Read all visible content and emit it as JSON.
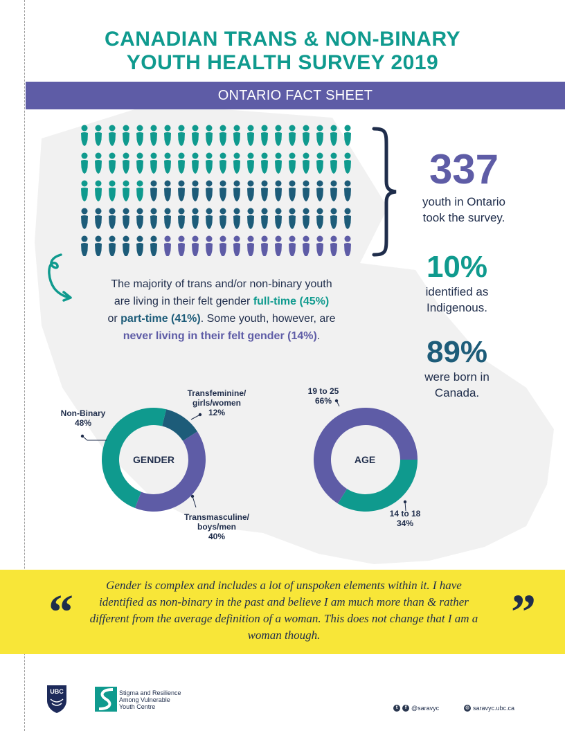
{
  "header": {
    "title_line1": "CANADIAN TRANS & NON-BINARY",
    "title_line2": "YOUTH HEALTH SURVEY 2019",
    "banner": "ONTARIO FACT SHEET"
  },
  "colors": {
    "teal": "#0f9a8e",
    "navy": "#1d5c79",
    "purple": "#5e5ca6",
    "yellow": "#f8e638",
    "map_gray": "#f0f0f0"
  },
  "pictogram": {
    "icon": "person-icon",
    "total_icons": 100,
    "teal_icons": 45,
    "navy_icons": 41,
    "purple_icons": 14
  },
  "stats": [
    {
      "value": "337",
      "text_line1": "youth in Ontario",
      "text_line2": "took the survey."
    },
    {
      "value": "10%",
      "text_line1": "identified as",
      "text_line2": "Indigenous."
    },
    {
      "value": "89%",
      "text_line1": "were born in",
      "text_line2": "Canada."
    }
  ],
  "felt_gender": {
    "line1": "The majority of trans and/or non-binary youth",
    "line2a": "are living in their felt gender ",
    "fulltime": "full-time (45%)",
    "line3a": "or ",
    "parttime": "part-time (41%)",
    "line3b": ". Some youth, however,  are",
    "never": "never living in their felt gender (14%)",
    "line4b": "."
  },
  "chart_data": [
    {
      "type": "pie",
      "title": "GENDER",
      "categories": [
        "Transfeminine/girls/women",
        "Transmasculine/boys/men",
        "Non-Binary"
      ],
      "values": [
        12,
        40,
        48
      ],
      "labels": [
        {
          "line1": "Transfeminine/",
          "line2": "girls/women",
          "pct": "12%"
        },
        {
          "line1": "Transmasculine/",
          "line2": "boys/men",
          "pct": "40%"
        },
        {
          "line1": "Non-Binary",
          "line2": "",
          "pct": "48%"
        }
      ],
      "colors": [
        "#1d5c79",
        "#5e5ca6",
        "#0f9a8e"
      ]
    },
    {
      "type": "pie",
      "title": "AGE",
      "categories": [
        "14 to 18",
        "19 to 25"
      ],
      "values": [
        34,
        66
      ],
      "labels": [
        {
          "line1": "14 to 18",
          "pct": "34%"
        },
        {
          "line1": "19 to 25",
          "pct": "66%"
        }
      ],
      "colors": [
        "#0f9a8e",
        "#5e5ca6"
      ]
    }
  ],
  "quote": {
    "text": "Gender is complex and includes a lot of unspoken elements within it. I have identified as non-binary in the past and believe I am much more than & rather different from the average definition of a woman. This does not change that I am a woman though.",
    "open_mark": "“",
    "close_mark": "”"
  },
  "footer": {
    "ubc": "UBC",
    "org_line1": "Stigma and Resilience",
    "org_line2": "Among Vulnerable",
    "org_line3": "Youth Centre",
    "social_handle": "@saravyc",
    "website": "saravyc.ubc.ca"
  }
}
